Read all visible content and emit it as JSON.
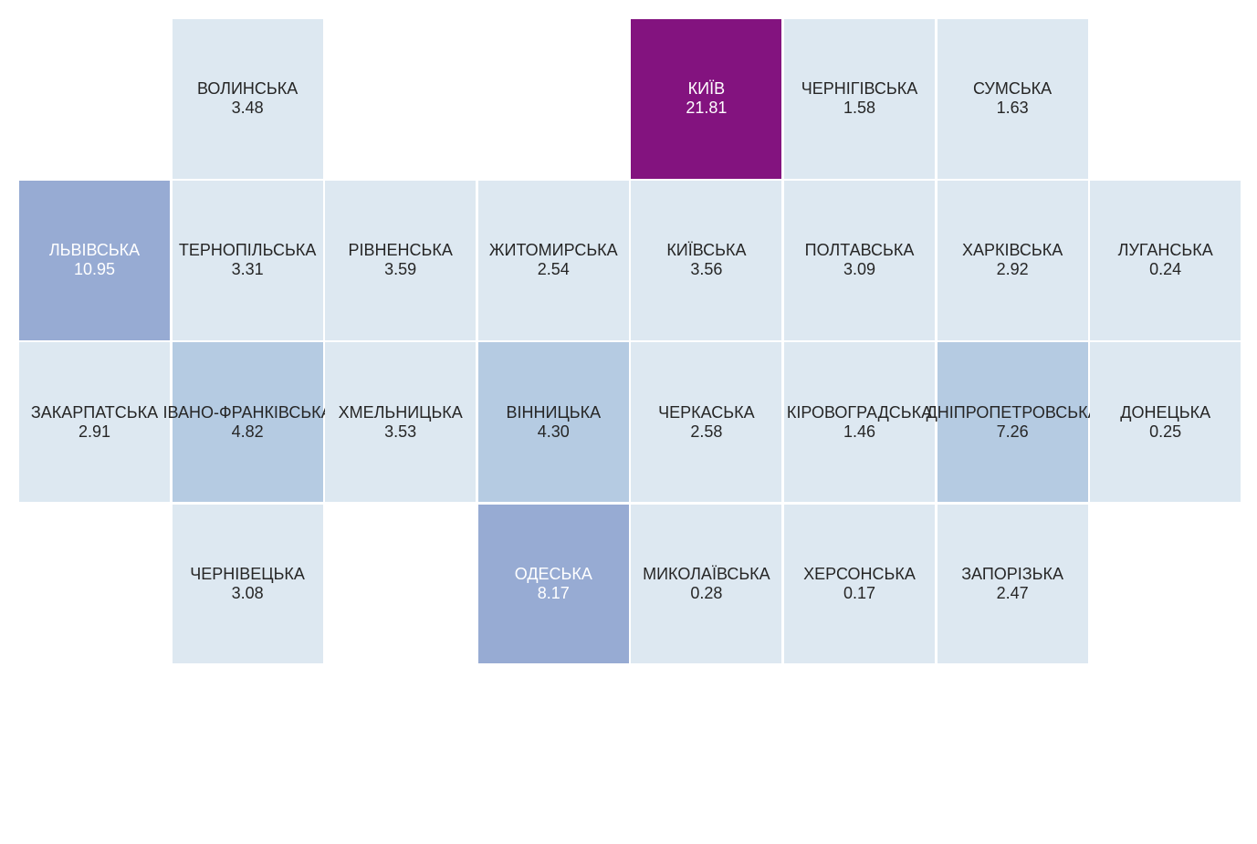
{
  "chart_data": {
    "type": "heatmap",
    "title": "",
    "legend": "none",
    "grid": {
      "columns": 8,
      "rows": 4
    },
    "color_scale": {
      "low": "#dde8f1",
      "mid_low": "#b5cbe2",
      "mid": "#97abd3",
      "high": "#83137f",
      "dark_text": "#262626",
      "light_text": "#ffffff"
    },
    "cells": [
      {
        "name": "ВОЛИНСЬКА",
        "value": 3.48,
        "label": "3.48",
        "col": 1,
        "row": 0
      },
      {
        "name": "КИЇВ",
        "value": 21.81,
        "label": "21.81",
        "col": 4,
        "row": 0
      },
      {
        "name": "ЧЕРНІГІВСЬКА",
        "value": 1.58,
        "label": "1.58",
        "col": 5,
        "row": 0
      },
      {
        "name": "СУМСЬКА",
        "value": 1.63,
        "label": "1.63",
        "col": 6,
        "row": 0
      },
      {
        "name": "ЛЬВІВСЬКА",
        "value": 10.95,
        "label": "10.95",
        "col": 0,
        "row": 1
      },
      {
        "name": "ТЕРНОПІЛЬСЬКА",
        "value": 3.31,
        "label": "3.31",
        "col": 1,
        "row": 1
      },
      {
        "name": "РІВНЕНСЬКА",
        "value": 3.59,
        "label": "3.59",
        "col": 2,
        "row": 1
      },
      {
        "name": "ЖИТОМИРСЬКА",
        "value": 2.54,
        "label": "2.54",
        "col": 3,
        "row": 1
      },
      {
        "name": "КИЇВСЬКА",
        "value": 3.56,
        "label": "3.56",
        "col": 4,
        "row": 1
      },
      {
        "name": "ПОЛТАВСЬКА",
        "value": 3.09,
        "label": "3.09",
        "col": 5,
        "row": 1
      },
      {
        "name": "ХАРКІВСЬКА",
        "value": 2.92,
        "label": "2.92",
        "col": 6,
        "row": 1
      },
      {
        "name": "ЛУГАНСЬКА",
        "value": 0.24,
        "label": "0.24",
        "col": 7,
        "row": 1
      },
      {
        "name": "ЗАКАРПАТСЬКА",
        "value": 2.91,
        "label": "2.91",
        "col": 0,
        "row": 2
      },
      {
        "name": "ІВАНО-ФРАНКІВСЬКА",
        "value": 4.82,
        "label": "4.82",
        "col": 1,
        "row": 2
      },
      {
        "name": "ХМЕЛЬНИЦЬКА",
        "value": 3.53,
        "label": "3.53",
        "col": 2,
        "row": 2
      },
      {
        "name": "ВІННИЦЬКА",
        "value": 4.3,
        "label": "4.30",
        "col": 3,
        "row": 2
      },
      {
        "name": "ЧЕРКАСЬКА",
        "value": 2.58,
        "label": "2.58",
        "col": 4,
        "row": 2
      },
      {
        "name": "КІРОВОГРАДСЬКА",
        "value": 1.46,
        "label": "1.46",
        "col": 5,
        "row": 2
      },
      {
        "name": "ДНІПРОПЕТРОВСЬКА",
        "value": 7.26,
        "label": "7.26",
        "col": 6,
        "row": 2
      },
      {
        "name": "ДОНЕЦЬКА",
        "value": 0.25,
        "label": "0.25",
        "col": 7,
        "row": 2
      },
      {
        "name": "ЧЕРНІВЕЦЬКА",
        "value": 3.08,
        "label": "3.08",
        "col": 1,
        "row": 3
      },
      {
        "name": "ОДЕСЬКА",
        "value": 8.17,
        "label": "8.17",
        "col": 3,
        "row": 3
      },
      {
        "name": "МИКОЛАЇВСЬКА",
        "value": 0.28,
        "label": "0.28",
        "col": 4,
        "row": 3
      },
      {
        "name": "ХЕРСОНСЬКА",
        "value": 0.17,
        "label": "0.17",
        "col": 5,
        "row": 3
      },
      {
        "name": "ЗАПОРІЗЬКА",
        "value": 2.47,
        "label": "2.47",
        "col": 6,
        "row": 3
      }
    ]
  }
}
